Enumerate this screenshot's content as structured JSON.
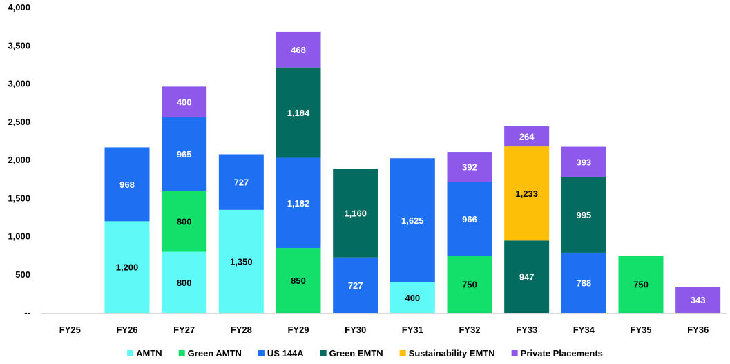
{
  "chart_data": {
    "type": "bar",
    "stacked": true,
    "categories": [
      "FY25",
      "FY26",
      "FY27",
      "FY28",
      "FY29",
      "FY30",
      "FY31",
      "FY32",
      "FY33",
      "FY34",
      "FY35",
      "FY36"
    ],
    "y_ticks": [
      "--",
      "500",
      "1,000",
      "1,500",
      "2,000",
      "2,500",
      "3,000",
      "3,500",
      "4,000"
    ],
    "ylim": [
      0,
      4000
    ],
    "grid": false,
    "legend_position": "bottom",
    "series": [
      {
        "name": "AMTN",
        "color": "#5ff9f7",
        "label_color": "#000000",
        "values": [
          0,
          1200,
          800,
          1350,
          0,
          0,
          400,
          0,
          0,
          0,
          0,
          0
        ],
        "labels": [
          "",
          "1,200",
          "800",
          "1,350",
          "",
          "",
          "400",
          "",
          "",
          "",
          "",
          ""
        ]
      },
      {
        "name": "Green AMTN",
        "color": "#12e06a",
        "label_color": "#000000",
        "values": [
          0,
          0,
          800,
          0,
          850,
          0,
          0,
          750,
          0,
          0,
          750,
          0
        ],
        "labels": [
          "",
          "",
          "800",
          "",
          "850",
          "",
          "",
          "750",
          "",
          "",
          "750",
          ""
        ]
      },
      {
        "name": "US 144A",
        "color": "#1f6ff2",
        "label_color": "#ffffff",
        "values": [
          0,
          968,
          965,
          727,
          1182,
          727,
          1625,
          966,
          0,
          788,
          0,
          0
        ],
        "labels": [
          "",
          "968",
          "965",
          "727",
          "1,182",
          "727",
          "1,625",
          "966",
          "",
          "788",
          "",
          ""
        ]
      },
      {
        "name": "Green EMTN",
        "color": "#046b60",
        "label_color": "#ffffff",
        "values": [
          0,
          0,
          0,
          0,
          1184,
          1160,
          0,
          0,
          947,
          995,
          0,
          0
        ],
        "labels": [
          "",
          "",
          "",
          "",
          "1,184",
          "1,160",
          "",
          "",
          "947",
          "995",
          "",
          ""
        ]
      },
      {
        "name": "Sustainability EMTN",
        "color": "#fdbf08",
        "label_color": "#000000",
        "values": [
          0,
          0,
          0,
          0,
          0,
          0,
          0,
          0,
          1233,
          0,
          0,
          0
        ],
        "labels": [
          "",
          "",
          "",
          "",
          "",
          "",
          "",
          "",
          "1,233",
          "",
          "",
          ""
        ]
      },
      {
        "name": "Private Placements",
        "color": "#8e59eb",
        "label_color": "#ffffff",
        "values": [
          0,
          0,
          400,
          0,
          468,
          0,
          0,
          392,
          264,
          393,
          0,
          343
        ],
        "labels": [
          "",
          "",
          "400",
          "",
          "468",
          "",
          "",
          "392",
          "264",
          "393",
          "",
          "343"
        ]
      }
    ]
  }
}
